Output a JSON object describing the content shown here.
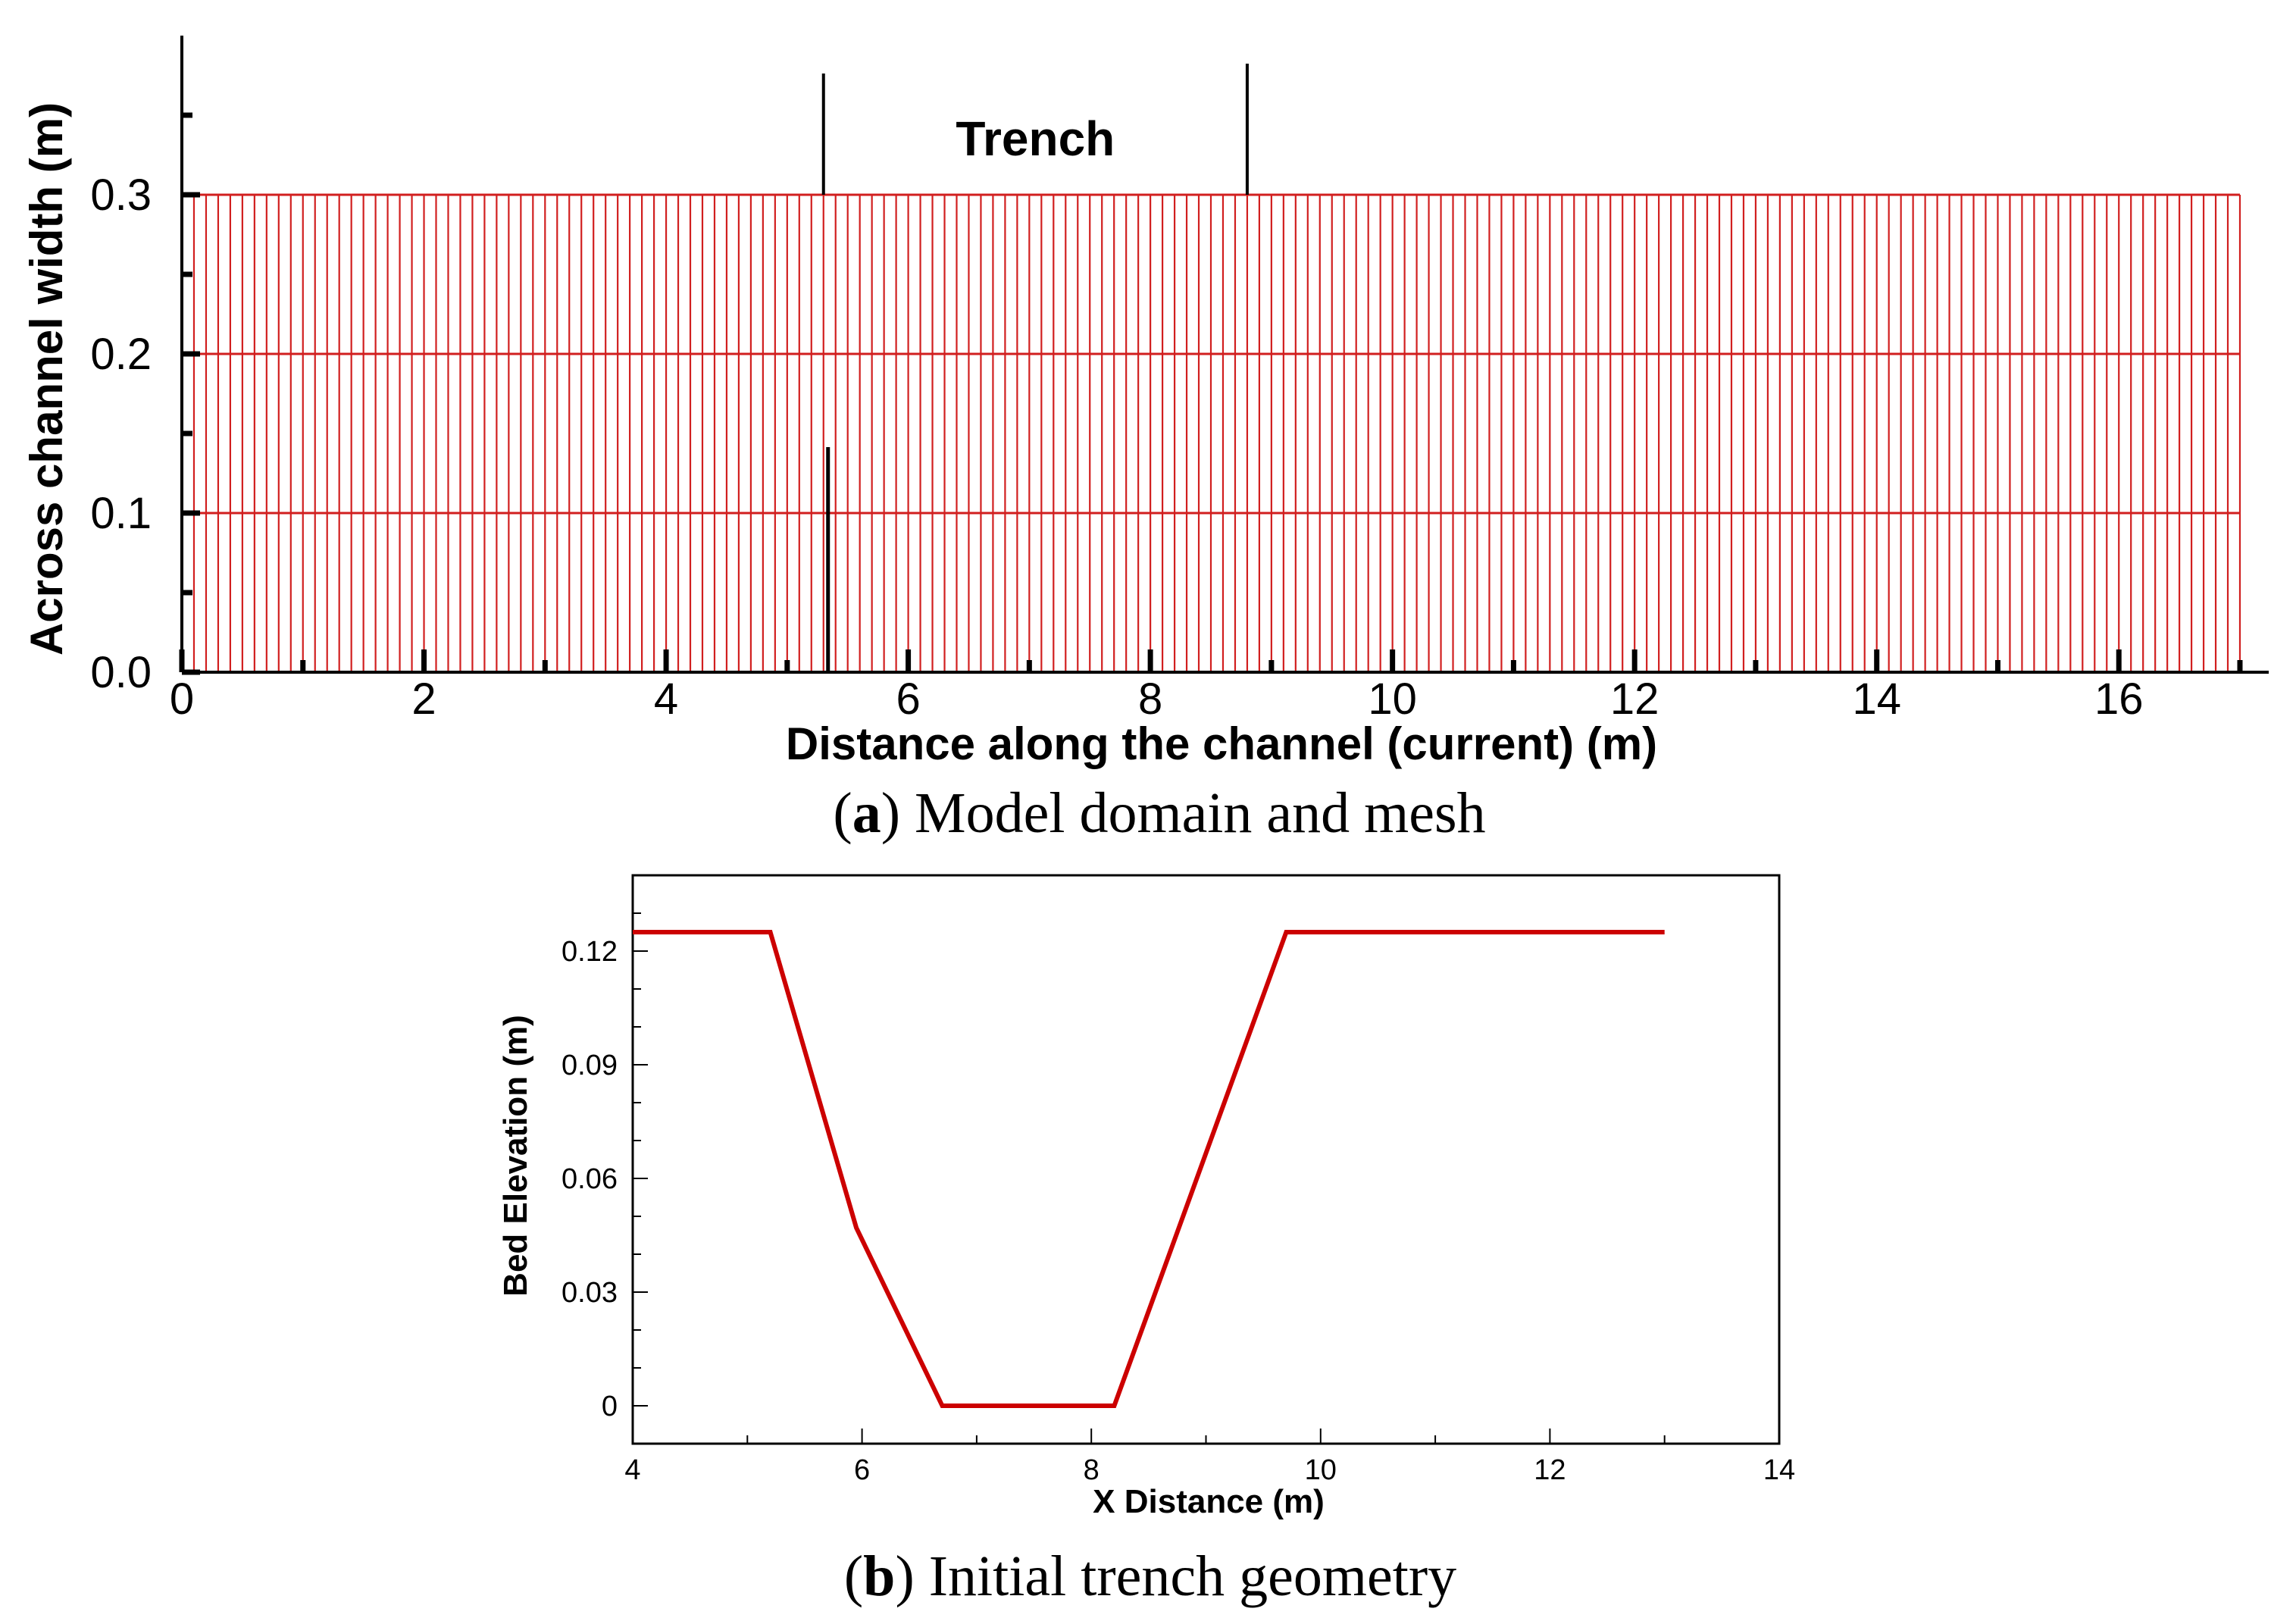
{
  "chart_data": [
    {
      "type": "mesh",
      "panel": "a",
      "caption_letter": "a",
      "caption_text": ") Model domain and mesh",
      "xlabel": "Distance along the channel (current) (m)",
      "ylabel": "Across channel width (m)",
      "xlim": [
        0,
        17
      ],
      "ylim": [
        0,
        0.4
      ],
      "xticks": [
        "0",
        "2",
        "4",
        "6",
        "8",
        "10",
        "12",
        "14",
        "16"
      ],
      "xtick_values": [
        0,
        2,
        4,
        6,
        8,
        10,
        12,
        14,
        16
      ],
      "yticks": [
        "0.0",
        "0.1",
        "0.2",
        "0.3"
      ],
      "ytick_values": [
        0.0,
        0.1,
        0.2,
        0.3
      ],
      "domain": {
        "x": [
          0,
          17
        ],
        "y": [
          0,
          0.3
        ]
      },
      "mesh_rows_y": [
        0,
        0.1,
        0.2,
        0.3
      ],
      "mesh_columns": 170,
      "mesh_color": "#d11f1f",
      "annotation": {
        "text": "Trench",
        "x_start": 5.3,
        "x_end": 8.8
      }
    },
    {
      "type": "line",
      "panel": "b",
      "caption_letter": "b",
      "caption_text": ") Initial trench geometry",
      "xlabel": "X Distance (m)",
      "ylabel": "Bed Elevation (m)",
      "xlim": [
        4,
        14
      ],
      "ylim": [
        -0.01,
        0.14
      ],
      "xticks": [
        "4",
        "6",
        "8",
        "10",
        "12",
        "14"
      ],
      "xtick_values": [
        4,
        6,
        8,
        10,
        12,
        14
      ],
      "yticks": [
        "0",
        "0.03",
        "0.06",
        "0.09",
        "0.12"
      ],
      "ytick_values": [
        0,
        0.03,
        0.06,
        0.09,
        0.12
      ],
      "series": [
        {
          "color": "#cc0000",
          "x": [
            4.0,
            5.2,
            5.95,
            6.7,
            8.2,
            9.7,
            13.0
          ],
          "y": [
            0.125,
            0.125,
            0.047,
            0.0,
            0.0,
            0.125,
            0.125
          ]
        }
      ]
    }
  ]
}
